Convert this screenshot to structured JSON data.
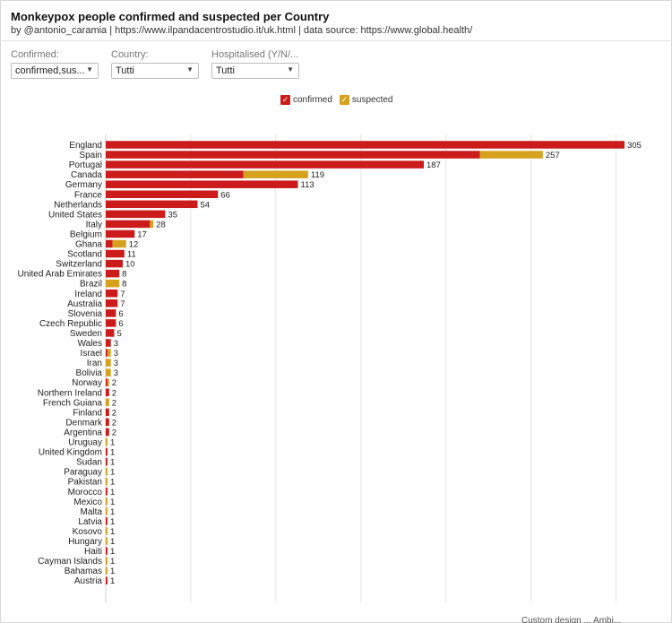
{
  "title": "Monkeypox people confirmed and suspected per Country",
  "subtitle": "by @antonio_caramia | https://www.ilpandacentrostudio.it/uk.html | data source: https://www.global.health/",
  "filters": [
    {
      "label": "Confirmed:",
      "value": "confirmed,sus..."
    },
    {
      "label": "Country:",
      "value": "Tutti"
    },
    {
      "label": "Hospitalised (Y/N/...",
      "value": "Tutti"
    }
  ],
  "legend": {
    "confirmed": "confirmed",
    "suspected": "suspected",
    "check": "✓"
  },
  "colors": {
    "confirmed": "#cc1b1b",
    "suspected": "#d6a21e",
    "grid": "#e4e4e4"
  },
  "footer": "Custom design ... Ambi...",
  "chart_data": {
    "type": "bar",
    "orientation": "horizontal",
    "stacked": true,
    "title": "Monkeypox people confirmed and suspected per Country",
    "categories": [
      "England",
      "Spain",
      "Portugal",
      "Canada",
      "Germany",
      "France",
      "Netherlands",
      "United States",
      "Italy",
      "Belgium",
      "Ghana",
      "Scotland",
      "Switzerland",
      "United Arab Emirates",
      "Brazil",
      "Ireland",
      "Australia",
      "Slovenia",
      "Czech Republic",
      "Sweden",
      "Wales",
      "Israel",
      "Iran",
      "Bolivia",
      "Norway",
      "Northern Ireland",
      "French Guiana",
      "Finland",
      "Denmark",
      "Argentina",
      "Uruguay",
      "United Kingdom",
      "Sudan",
      "Paraguay",
      "Pakistan",
      "Morocco",
      "Mexico",
      "Malta",
      "Latvia",
      "Kosovo",
      "Hungary",
      "Haiti",
      "Cayman Islands",
      "Bahamas",
      "Austria"
    ],
    "series": [
      {
        "name": "confirmed",
        "values": [
          305,
          220,
          187,
          81,
          113,
          66,
          54,
          35,
          26,
          17,
          4,
          11,
          10,
          8,
          0,
          7,
          7,
          6,
          6,
          5,
          3,
          1,
          0,
          0,
          1,
          2,
          0,
          2,
          2,
          2,
          0,
          1,
          1,
          0,
          0,
          1,
          0,
          0,
          1,
          0,
          0,
          1,
          0,
          0,
          1
        ]
      },
      {
        "name": "suspected",
        "values": [
          0,
          37,
          0,
          38,
          0,
          0,
          0,
          0,
          2,
          0,
          8,
          0,
          0,
          0,
          8,
          0,
          0,
          0,
          0,
          0,
          0,
          2,
          3,
          3,
          1,
          0,
          2,
          0,
          0,
          0,
          1,
          0,
          0,
          1,
          1,
          0,
          1,
          1,
          0,
          1,
          1,
          0,
          1,
          1,
          0
        ]
      }
    ],
    "totals": [
      305,
      257,
      187,
      119,
      113,
      66,
      54,
      35,
      28,
      17,
      12,
      11,
      10,
      8,
      8,
      7,
      7,
      6,
      6,
      5,
      3,
      3,
      3,
      3,
      2,
      2,
      2,
      2,
      2,
      2,
      1,
      1,
      1,
      1,
      1,
      1,
      1,
      1,
      1,
      1,
      1,
      1,
      1,
      1,
      1
    ],
    "xlim": [
      0,
      305
    ],
    "grid": true,
    "legend_position": "top-center"
  }
}
